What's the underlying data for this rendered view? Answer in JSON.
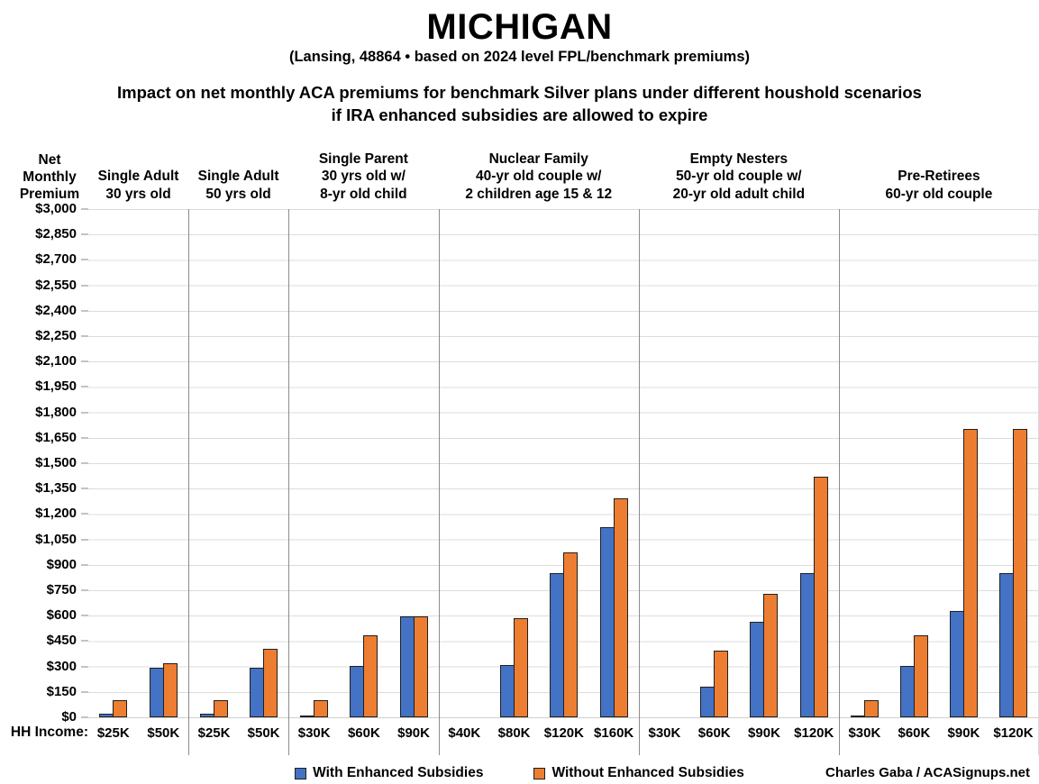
{
  "chart_data": {
    "type": "bar",
    "title": "MICHIGAN",
    "subtitle": "(Lansing, 48864 • based on 2024 level FPL/benchmark premiums)",
    "headline": [
      "Impact on net monthly ACA premiums for benchmark Silver plans under different houshold scenarios",
      "if IRA enhanced subsidies are allowed to expire"
    ],
    "y_axis": {
      "label": "Net\nMonthly\nPremium",
      "min": 0,
      "max": 3000,
      "step": 150,
      "tick_prefix": "$"
    },
    "x_axis_label": "HH Income:",
    "grid": true,
    "colors": {
      "with_enhanced": "#4472C4",
      "without_enhanced": "#ED7D31",
      "bar_border": "#1f1f1f",
      "gridline": "#dcdcdc",
      "panel_separator": "#8c8c8c"
    },
    "legend": [
      {
        "key": "with_enhanced",
        "label": "With Enhanced Subsidies",
        "color": "#4472C4"
      },
      {
        "key": "without_enhanced",
        "label": "Without Enhanced Subsidies",
        "color": "#ED7D31"
      }
    ],
    "groups": [
      {
        "header": [
          "Single Adult",
          "30 yrs old"
        ],
        "categories": [
          "$25K",
          "$50K"
        ],
        "series": {
          "with_enhanced": [
            20,
            295
          ],
          "without_enhanced": [
            100,
            320
          ]
        }
      },
      {
        "header": [
          "Single Adult",
          "50 yrs old"
        ],
        "categories": [
          "$25K",
          "$50K"
        ],
        "series": {
          "with_enhanced": [
            20,
            295
          ],
          "without_enhanced": [
            100,
            405
          ]
        }
      },
      {
        "header": [
          "Single Parent",
          "30 yrs old w/",
          "8-yr old child"
        ],
        "categories": [
          "$30K",
          "$60K",
          "$90K"
        ],
        "series": {
          "with_enhanced": [
            10,
            305,
            595
          ],
          "without_enhanced": [
            100,
            485,
            595
          ]
        }
      },
      {
        "header": [
          "Nuclear Family",
          "40-yr old couple w/",
          "2 children age 15 & 12"
        ],
        "categories": [
          "$40K",
          "$80K",
          "$120K",
          "$160K"
        ],
        "series": {
          "with_enhanced": [
            0,
            310,
            850,
            1125
          ],
          "without_enhanced": [
            0,
            585,
            975,
            1295
          ]
        }
      },
      {
        "header": [
          "Empty Nesters",
          "50-yr old couple w/",
          "20-yr old adult child"
        ],
        "categories": [
          "$30K",
          "$60K",
          "$90K",
          "$120K"
        ],
        "series": {
          "with_enhanced": [
            0,
            180,
            565,
            850
          ],
          "without_enhanced": [
            0,
            395,
            730,
            1420
          ]
        }
      },
      {
        "header": [
          "Pre-Retirees",
          "60-yr old couple"
        ],
        "categories": [
          "$30K",
          "$60K",
          "$90K",
          "$120K"
        ],
        "series": {
          "with_enhanced": [
            10,
            305,
            630,
            850
          ],
          "without_enhanced": [
            100,
            485,
            1700,
            1700
          ]
        }
      }
    ],
    "credit": "Charles Gaba / ACASignups.net"
  }
}
